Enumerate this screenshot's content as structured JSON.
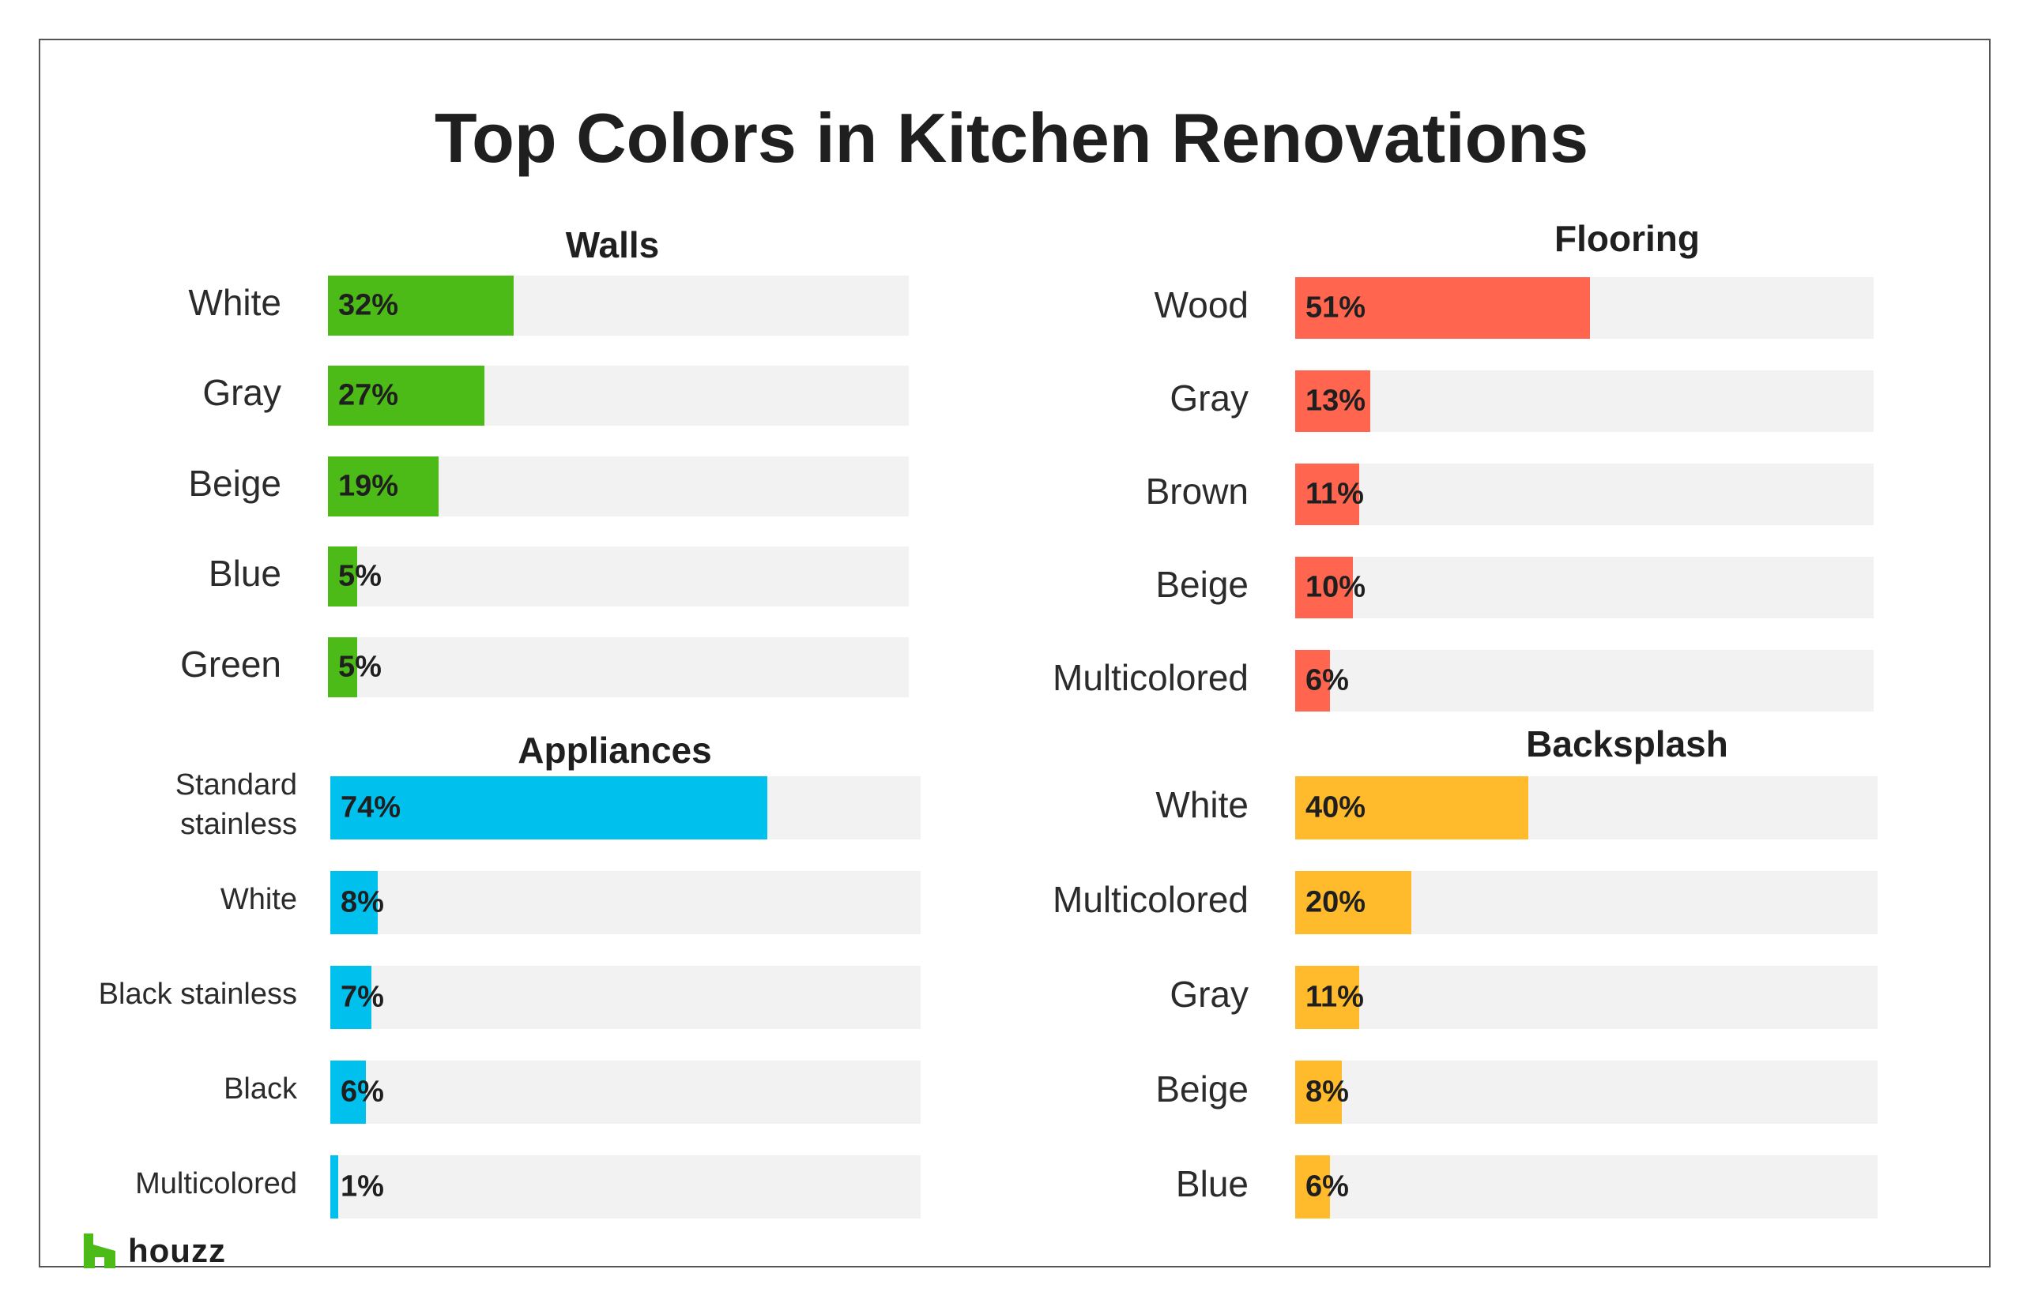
{
  "chart_data": {
    "type": "bar",
    "title": "Top Colors in Kitchen Renovations",
    "panels": [
      {
        "key": "walls",
        "title": "Walls",
        "color": "#4cbb17",
        "categories": [
          "White",
          "Gray",
          "Beige",
          "Blue",
          "Green"
        ],
        "values": [
          32,
          27,
          19,
          5,
          5
        ],
        "labels": [
          "32%",
          "27%",
          "19%",
          "5%",
          "5%"
        ]
      },
      {
        "key": "flooring",
        "title": "Flooring",
        "color": "#ff654f",
        "categories": [
          "Wood",
          "Gray",
          "Brown",
          "Beige",
          "Multicolored"
        ],
        "values": [
          51,
          13,
          11,
          10,
          6
        ],
        "labels": [
          "51%",
          "13%",
          "11%",
          "10%",
          "6%"
        ]
      },
      {
        "key": "appliances",
        "title": "Appliances",
        "color": "#00c0ee",
        "categories": [
          "Standard\nstainless",
          "White",
          "Black stainless",
          "Black",
          "Multicolored"
        ],
        "values": [
          74,
          8,
          7,
          6,
          1
        ],
        "labels": [
          "74%",
          "8%",
          "7%",
          "6%",
          "1%"
        ]
      },
      {
        "key": "backsplash",
        "title": "Backsplash",
        "color": "#ffbb2b",
        "categories": [
          "White",
          "Multicolored",
          "Gray",
          "Beige",
          "Blue"
        ],
        "values": [
          40,
          20,
          11,
          8,
          6
        ],
        "labels": [
          "40%",
          "20%",
          "11%",
          "8%",
          "6%"
        ]
      }
    ],
    "xlim": [
      0,
      100
    ]
  },
  "brand": {
    "name": "houzz",
    "icon": "houzz-logo-icon",
    "color": "#4cbb17"
  }
}
